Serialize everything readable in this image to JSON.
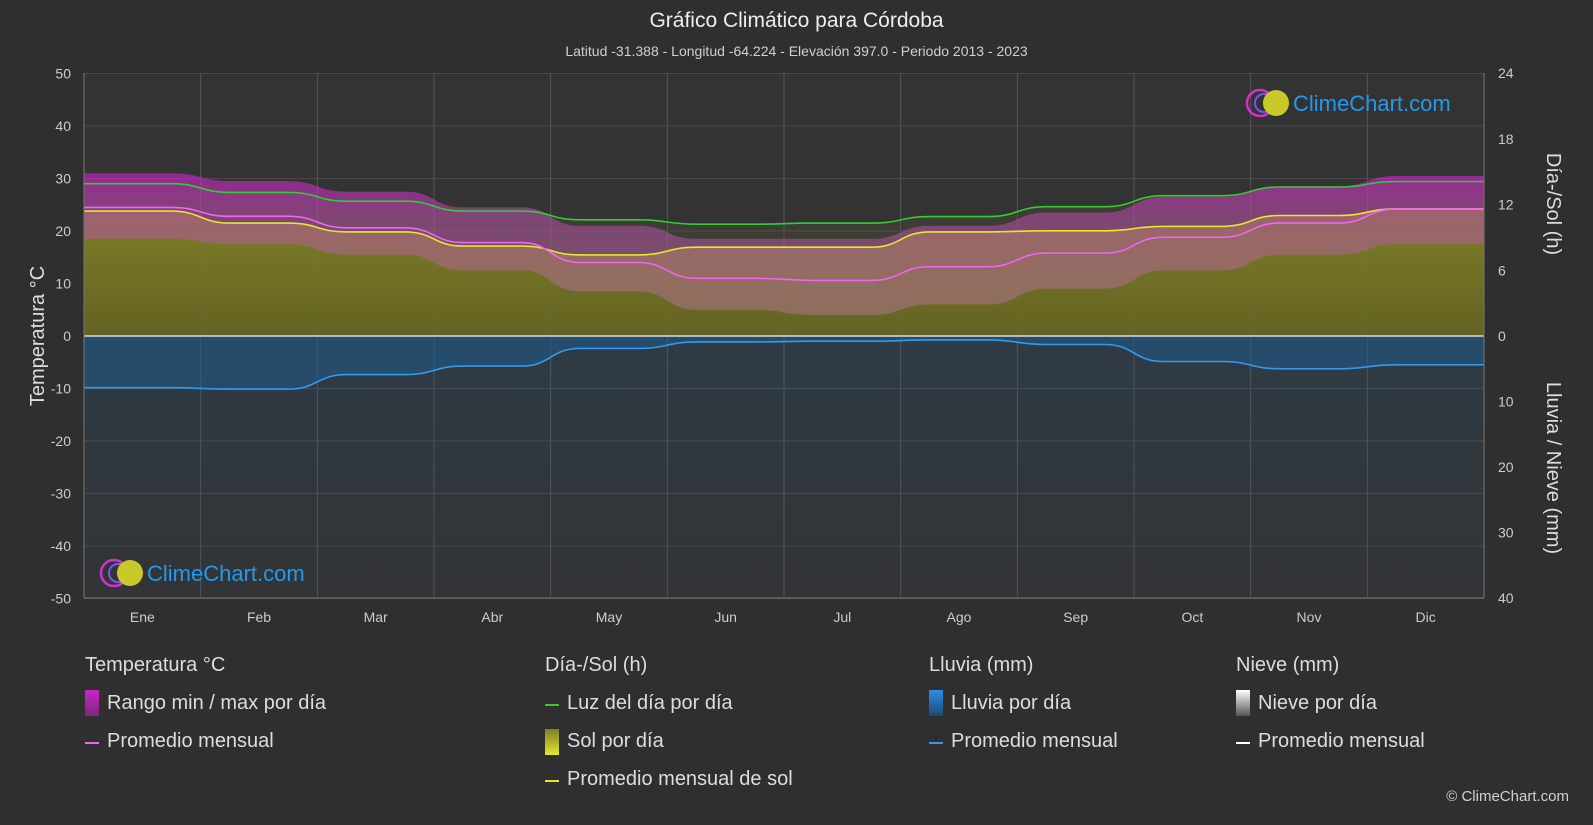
{
  "header": {
    "title": "Gráfico Climático para Córdoba",
    "subtitle": "Latitud -31.388 - Longitud -64.224 - Elevación 397.0 - Periodo 2013 - 2023"
  },
  "chart_data": {
    "type": "area",
    "categories": [
      "Ene",
      "Feb",
      "Mar",
      "Abr",
      "May",
      "Jun",
      "Jul",
      "Ago",
      "Sep",
      "Oct",
      "Nov",
      "Dic"
    ],
    "axes": {
      "left": {
        "label": "Temperatura °C",
        "range": [
          -50,
          50
        ],
        "ticks": [
          50,
          40,
          30,
          20,
          10,
          0,
          -10,
          -20,
          -30,
          -40,
          -50
        ]
      },
      "right_top": {
        "label": "Día-/Sol (h)",
        "range": [
          0,
          24
        ],
        "ticks": [
          24,
          18,
          12,
          6,
          0
        ]
      },
      "right_bottom": {
        "label": "Lluvia / Nieve (mm)",
        "range": [
          0,
          40
        ],
        "ticks": [
          0,
          10,
          20,
          30,
          40
        ]
      }
    },
    "grid": true,
    "series": [
      {
        "name": "Luz del día por día",
        "unit": "h",
        "color": "#33cc33",
        "values": [
          13.9,
          13.1,
          12.3,
          11.4,
          10.6,
          10.2,
          10.3,
          10.9,
          11.8,
          12.8,
          13.6,
          14.1
        ]
      },
      {
        "name": "Promedio mensual de sol",
        "unit": "h",
        "color": "#e6e62e",
        "values": [
          11.4,
          10.3,
          9.5,
          8.2,
          7.4,
          8.1,
          8.1,
          9.5,
          9.6,
          10.0,
          11.0,
          11.6
        ]
      },
      {
        "name": "Promedio mensual",
        "group": "Temperatura °C",
        "unit": "°C",
        "color": "#ee66ee",
        "values": [
          24.5,
          22.8,
          20.6,
          17.8,
          14.0,
          11.0,
          10.6,
          13.2,
          15.8,
          18.8,
          21.5,
          24.2
        ]
      },
      {
        "name": "Rango min / max por día",
        "unit": "°C",
        "color": "#cc22cc",
        "min": [
          18.5,
          17.5,
          15.5,
          12.5,
          8.5,
          5.0,
          4.0,
          6.0,
          9.0,
          12.5,
          15.5,
          17.5
        ],
        "max": [
          31.0,
          29.5,
          27.5,
          24.5,
          21.0,
          18.5,
          18.5,
          21.0,
          23.5,
          26.5,
          28.5,
          30.5
        ]
      },
      {
        "name": "Promedio mensual",
        "group": "Lluvia (mm)",
        "unit": "mm",
        "color": "#3399ee",
        "values": [
          7.9,
          8.1,
          5.9,
          4.6,
          1.9,
          0.9,
          0.8,
          0.6,
          1.3,
          3.9,
          5.0,
          4.4
        ]
      }
    ]
  },
  "legend": {
    "temperature": {
      "title": "Temperatura °C",
      "items": [
        "Rango min / max por día",
        "Promedio mensual"
      ]
    },
    "sun": {
      "title": "Día-/Sol (h)",
      "items": [
        "Luz del día por día",
        "Sol por día",
        "Promedio mensual de sol"
      ]
    },
    "rain": {
      "title": "Lluvia (mm)",
      "items": [
        "Lluvia por día",
        "Promedio mensual"
      ]
    },
    "snow": {
      "title": "Nieve (mm)",
      "items": [
        "Nieve por día",
        "Promedio mensual"
      ]
    }
  },
  "colors": {
    "background": "#2f2f2f",
    "temp_range": "#cc22cc",
    "temp_avg": "#ee66ee",
    "daylight": "#33cc33",
    "sun": "#e6e62e",
    "rain": "#3399ee",
    "snow": "#ffffff",
    "brand": "#2299ee"
  },
  "branding": {
    "logo_text": "ClimeChart.com",
    "copyright": "© ClimeChart.com"
  }
}
